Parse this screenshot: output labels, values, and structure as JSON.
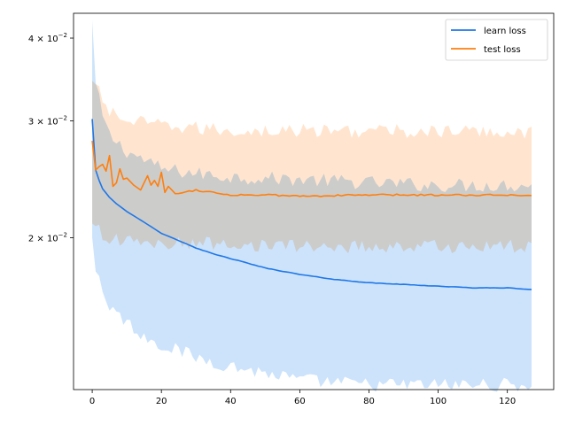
{
  "chart_data": {
    "type": "line",
    "title": "",
    "xlabel": "",
    "ylabel": "",
    "xlim": [
      -5.4,
      133.4
    ],
    "ylim": [
      0.0118,
      0.0436
    ],
    "yscale": "log",
    "grid": false,
    "legend_position": "top-right",
    "x_ticks": [
      {
        "value": 0,
        "label": "0"
      },
      {
        "value": 20,
        "label": "20"
      },
      {
        "value": 40,
        "label": "40"
      },
      {
        "value": 60,
        "label": "60"
      },
      {
        "value": 80,
        "label": "80"
      },
      {
        "value": 100,
        "label": "100"
      },
      {
        "value": 120,
        "label": "120"
      }
    ],
    "y_ticks": [
      {
        "value": 0.02,
        "mantissa": "2",
        "times": "×",
        "base": "10",
        "exponent": "−2"
      },
      {
        "value": 0.03,
        "mantissa": "3",
        "times": "×",
        "base": "10",
        "exponent": "−2"
      },
      {
        "value": 0.04,
        "mantissa": "4",
        "times": "×",
        "base": "10",
        "exponent": "−2"
      }
    ],
    "x_count": 128,
    "series": [
      {
        "name": "learn loss",
        "color": "#1f77e8",
        "band_color": "#cce3fb",
        "anchors": [
          [
            0,
            0.0302
          ],
          [
            1,
            0.0253
          ],
          [
            2,
            0.0244
          ],
          [
            3,
            0.0237
          ],
          [
            5,
            0.023
          ],
          [
            7,
            0.0225
          ],
          [
            10,
            0.0219
          ],
          [
            15,
            0.0211
          ],
          [
            20,
            0.0203
          ],
          [
            25,
            0.0198
          ],
          [
            30,
            0.0193
          ],
          [
            35,
            0.0189
          ],
          [
            40,
            0.0186
          ],
          [
            45,
            0.0183
          ],
          [
            50,
            0.018
          ],
          [
            55,
            0.0178
          ],
          [
            60,
            0.0176
          ],
          [
            70,
            0.0173
          ],
          [
            80,
            0.0171
          ],
          [
            90,
            0.017
          ],
          [
            100,
            0.0169
          ],
          [
            110,
            0.0168
          ],
          [
            120,
            0.0168
          ],
          [
            127,
            0.0167
          ]
        ],
        "band_lower": [
          [
            0,
            0.02
          ],
          [
            1,
            0.018
          ],
          [
            3,
            0.0166
          ],
          [
            5,
            0.0158
          ],
          [
            10,
            0.0149
          ],
          [
            15,
            0.0142
          ],
          [
            20,
            0.0138
          ],
          [
            30,
            0.0132
          ],
          [
            40,
            0.0128
          ],
          [
            50,
            0.0125
          ],
          [
            60,
            0.0122
          ],
          [
            70,
            0.0121
          ],
          [
            80,
            0.012
          ],
          [
            100,
            0.012
          ],
          [
            127,
            0.012
          ]
        ],
        "band_upper": [
          [
            0,
            0.0425
          ],
          [
            1,
            0.034
          ],
          [
            3,
            0.0305
          ],
          [
            5,
            0.0285
          ],
          [
            10,
            0.027
          ],
          [
            15,
            0.0262
          ],
          [
            20,
            0.0254
          ],
          [
            30,
            0.025
          ],
          [
            40,
            0.0247
          ],
          [
            50,
            0.0246
          ],
          [
            60,
            0.0245
          ],
          [
            80,
            0.0242
          ],
          [
            100,
            0.024
          ],
          [
            127,
            0.024
          ]
        ]
      },
      {
        "name": "test loss",
        "color": "#ff7f0e",
        "band_color": "#ffdcbf",
        "anchors": [
          [
            0,
            0.028
          ],
          [
            1,
            0.0253
          ],
          [
            2,
            0.0256
          ],
          [
            3,
            0.0258
          ],
          [
            4,
            0.0252
          ],
          [
            5,
            0.0266
          ],
          [
            6,
            0.0239
          ],
          [
            7,
            0.0242
          ],
          [
            8,
            0.0254
          ],
          [
            9,
            0.0245
          ],
          [
            10,
            0.0246
          ],
          [
            12,
            0.024
          ],
          [
            14,
            0.0236
          ],
          [
            16,
            0.0248
          ],
          [
            17,
            0.024
          ],
          [
            18,
            0.0244
          ],
          [
            19,
            0.0239
          ],
          [
            20,
            0.0251
          ],
          [
            21,
            0.0234
          ],
          [
            22,
            0.0239
          ],
          [
            24,
            0.0233
          ],
          [
            30,
            0.0236
          ],
          [
            40,
            0.0232
          ],
          [
            50,
            0.0232
          ],
          [
            60,
            0.0231
          ],
          [
            80,
            0.0232
          ],
          [
            100,
            0.0232
          ],
          [
            127,
            0.0232
          ]
        ],
        "band_lower": [
          [
            0,
            0.021
          ],
          [
            3,
            0.0202
          ],
          [
            10,
            0.0197
          ],
          [
            20,
            0.0196
          ],
          [
            40,
            0.0196
          ],
          [
            60,
            0.0194
          ],
          [
            80,
            0.0194
          ],
          [
            100,
            0.0194
          ],
          [
            127,
            0.0194
          ]
        ],
        "band_upper": [
          [
            0,
            0.0345
          ],
          [
            5,
            0.031
          ],
          [
            10,
            0.03
          ],
          [
            20,
            0.0295
          ],
          [
            40,
            0.029
          ],
          [
            60,
            0.029
          ],
          [
            80,
            0.029
          ],
          [
            100,
            0.0289
          ],
          [
            127,
            0.0289
          ]
        ]
      }
    ]
  }
}
